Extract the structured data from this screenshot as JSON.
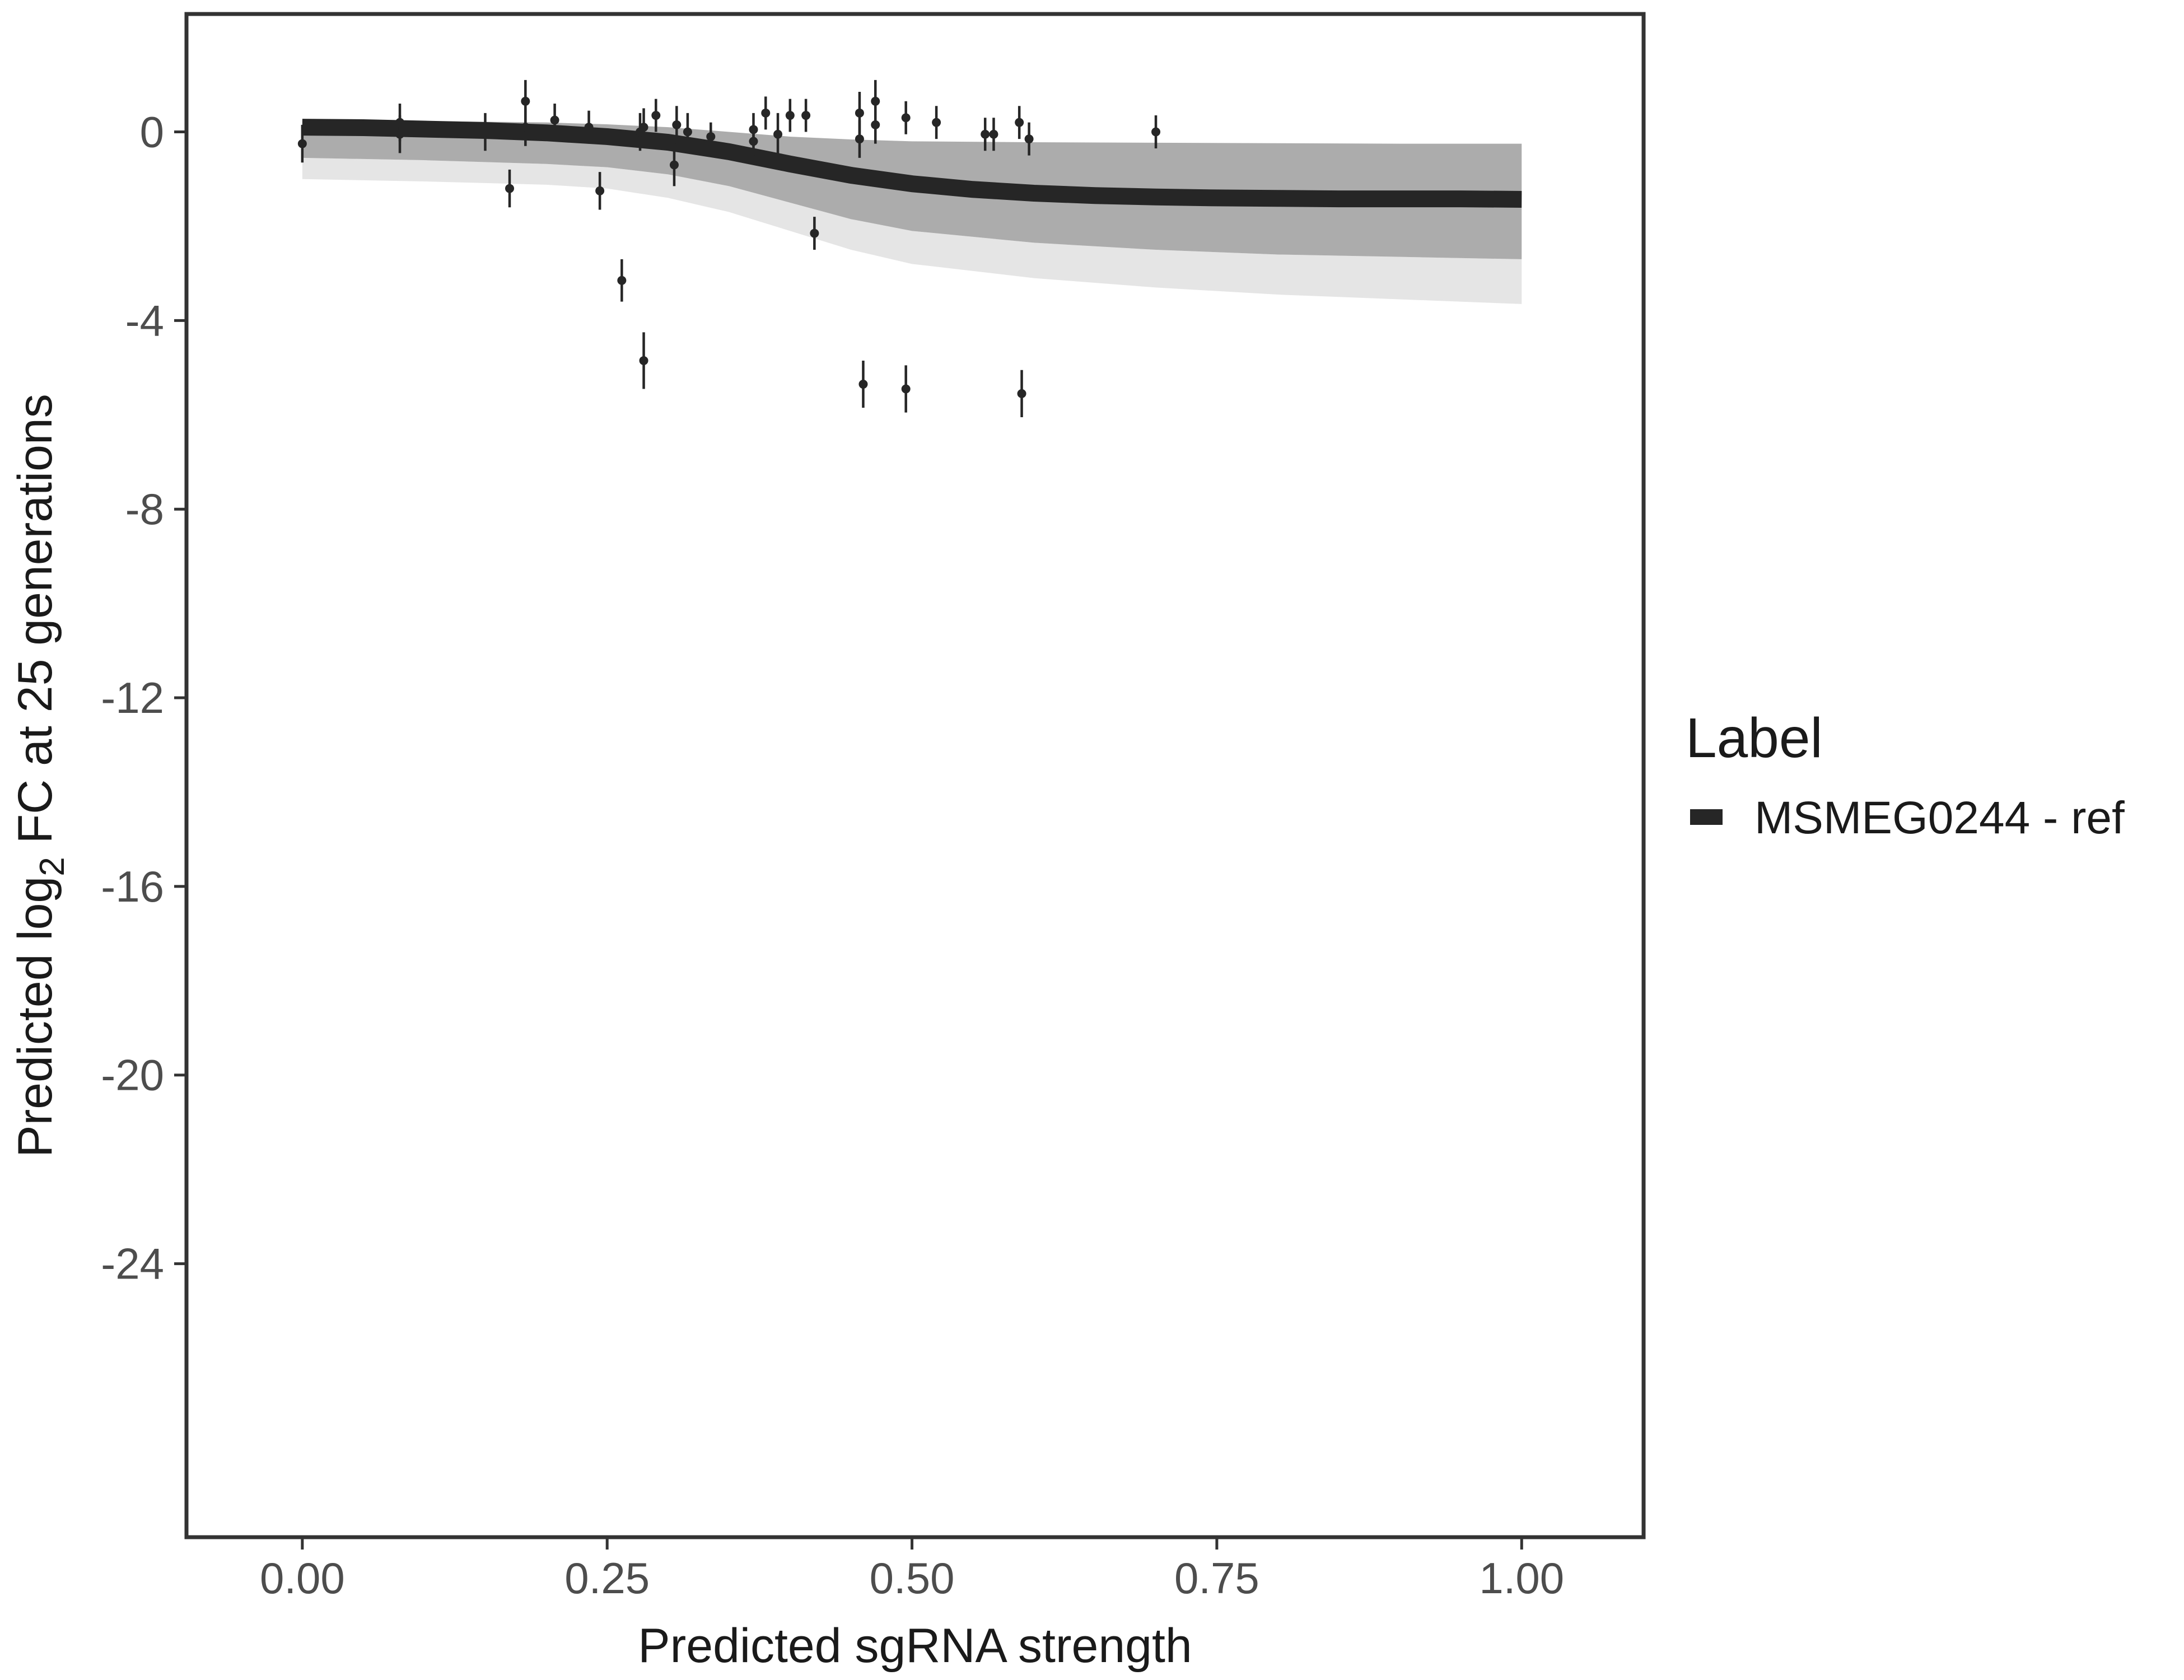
{
  "chart_data": {
    "type": "scatter",
    "xlabel": "Predicted sgRNA strength",
    "ylabel_parts": [
      "Predicted  log",
      "2",
      " FC at 25 generations"
    ],
    "xlim": [
      -0.095,
      1.1
    ],
    "ylim": [
      -29.8,
      2.5
    ],
    "x_ticks": [
      0.0,
      0.25,
      0.5,
      0.75,
      1.0
    ],
    "x_tick_labels": [
      "0.00",
      "0.25",
      "0.50",
      "0.75",
      "1.00"
    ],
    "y_ticks": [
      0,
      -4,
      -8,
      -12,
      -16,
      -20,
      -24
    ],
    "y_tick_labels": [
      "0",
      "-4",
      "-8",
      "-12",
      "-16",
      "-20",
      "-24"
    ],
    "grid": false,
    "legend": {
      "title": "Label",
      "placement": "right",
      "entries": [
        {
          "label": "MSMEG0244 - ref",
          "color": "#262626"
        }
      ]
    },
    "colors": {
      "fit_line": "#262626",
      "posterior_band": "#a8a8a8",
      "posterior_band_light": "#d0d0d0",
      "points": "#262626",
      "panel_border": "#333333"
    },
    "fit_line": {
      "x": [
        0.0,
        0.05,
        0.1,
        0.15,
        0.2,
        0.25,
        0.3,
        0.35,
        0.4,
        0.45,
        0.5,
        0.55,
        0.6,
        0.65,
        0.7,
        0.75,
        0.8,
        0.85,
        0.9,
        0.95,
        1.0
      ],
      "y": [
        0.1,
        0.09,
        0.06,
        0.03,
        -0.02,
        -0.1,
        -0.22,
        -0.42,
        -0.68,
        -0.92,
        -1.1,
        -1.22,
        -1.3,
        -1.35,
        -1.38,
        -1.4,
        -1.41,
        -1.42,
        -1.42,
        -1.42,
        -1.43
      ]
    },
    "posterior_band": {
      "x": [
        0.0,
        0.1,
        0.2,
        0.25,
        0.3,
        0.35,
        0.4,
        0.45,
        0.5,
        0.6,
        0.7,
        0.8,
        0.9,
        1.0
      ],
      "upper": [
        0.25,
        0.23,
        0.2,
        0.16,
        0.1,
        0.0,
        -0.1,
        -0.16,
        -0.2,
        -0.22,
        -0.23,
        -0.24,
        -0.25,
        -0.25
      ],
      "lower": [
        -0.55,
        -0.6,
        -0.68,
        -0.75,
        -0.9,
        -1.15,
        -1.5,
        -1.85,
        -2.1,
        -2.35,
        -2.5,
        -2.6,
        -2.65,
        -2.7
      ],
      "lower_faint": [
        -1.0,
        -1.05,
        -1.12,
        -1.2,
        -1.4,
        -1.7,
        -2.1,
        -2.5,
        -2.8,
        -3.1,
        -3.3,
        -3.45,
        -3.55,
        -3.65
      ]
    },
    "points": [
      {
        "x": 0.0,
        "y": -0.25,
        "err": 0.4
      },
      {
        "x": 0.08,
        "y": 0.2,
        "err": 0.4
      },
      {
        "x": 0.08,
        "y": -0.05,
        "err": 0.4
      },
      {
        "x": 0.15,
        "y": 0.0,
        "err": 0.4
      },
      {
        "x": 0.17,
        "y": -1.2,
        "err": 0.4
      },
      {
        "x": 0.183,
        "y": 0.65,
        "err": 0.45
      },
      {
        "x": 0.183,
        "y": 0.1,
        "err": 0.4
      },
      {
        "x": 0.207,
        "y": 0.25,
        "err": 0.35
      },
      {
        "x": 0.235,
        "y": 0.1,
        "err": 0.35
      },
      {
        "x": 0.244,
        "y": -1.25,
        "err": 0.4
      },
      {
        "x": 0.262,
        "y": -3.15,
        "err": 0.45
      },
      {
        "x": 0.277,
        "y": 0.0,
        "err": 0.4
      },
      {
        "x": 0.28,
        "y": 0.1,
        "err": 0.4
      },
      {
        "x": 0.28,
        "y": -4.85,
        "err": 0.6
      },
      {
        "x": 0.29,
        "y": 0.35,
        "err": 0.35
      },
      {
        "x": 0.305,
        "y": -0.7,
        "err": 0.45
      },
      {
        "x": 0.307,
        "y": 0.15,
        "err": 0.4
      },
      {
        "x": 0.316,
        "y": 0.0,
        "err": 0.4
      },
      {
        "x": 0.335,
        "y": -0.1,
        "err": 0.3
      },
      {
        "x": 0.37,
        "y": 0.05,
        "err": 0.35
      },
      {
        "x": 0.37,
        "y": -0.2,
        "err": 0.3
      },
      {
        "x": 0.38,
        "y": 0.4,
        "err": 0.35
      },
      {
        "x": 0.39,
        "y": -0.05,
        "err": 0.45
      },
      {
        "x": 0.4,
        "y": 0.35,
        "err": 0.35
      },
      {
        "x": 0.413,
        "y": 0.35,
        "err": 0.35
      },
      {
        "x": 0.42,
        "y": -2.15,
        "err": 0.35
      },
      {
        "x": 0.457,
        "y": 0.4,
        "err": 0.45
      },
      {
        "x": 0.457,
        "y": -0.15,
        "err": 0.4
      },
      {
        "x": 0.46,
        "y": -5.35,
        "err": 0.5
      },
      {
        "x": 0.47,
        "y": 0.65,
        "err": 0.45
      },
      {
        "x": 0.47,
        "y": 0.15,
        "err": 0.4
      },
      {
        "x": 0.495,
        "y": 0.3,
        "err": 0.35
      },
      {
        "x": 0.495,
        "y": -5.45,
        "err": 0.5
      },
      {
        "x": 0.52,
        "y": 0.2,
        "err": 0.35
      },
      {
        "x": 0.56,
        "y": -0.05,
        "err": 0.35
      },
      {
        "x": 0.567,
        "y": -0.05,
        "err": 0.35
      },
      {
        "x": 0.588,
        "y": 0.2,
        "err": 0.35
      },
      {
        "x": 0.59,
        "y": -5.55,
        "err": 0.5
      },
      {
        "x": 0.596,
        "y": -0.15,
        "err": 0.35
      },
      {
        "x": 0.7,
        "y": 0.0,
        "err": 0.35
      }
    ]
  }
}
